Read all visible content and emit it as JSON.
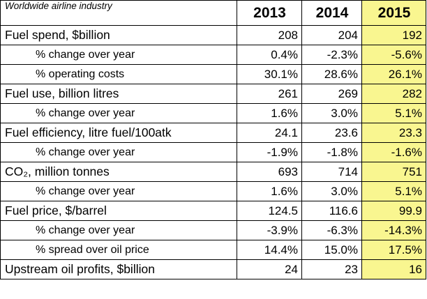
{
  "table": {
    "title": "Worldwide airline industry",
    "years": [
      "2013",
      "2014",
      "2015"
    ],
    "highlight_color": "#f9f690",
    "rows": [
      {
        "label": "Fuel spend, $billion",
        "values": [
          "208",
          "204",
          "192"
        ]
      },
      {
        "label": "% change over year",
        "values": [
          "0.4%",
          "-2.3%",
          "-5.6%"
        ]
      },
      {
        "label": "% operating costs",
        "values": [
          "30.1%",
          "28.6%",
          "26.1%"
        ]
      },
      {
        "label": "Fuel use, billion litres",
        "values": [
          "261",
          "269",
          "282"
        ]
      },
      {
        "label": "% change over year",
        "values": [
          "1.6%",
          "3.0%",
          "5.1%"
        ]
      },
      {
        "label": "Fuel efficiency, litre fuel/100atk",
        "values": [
          "24.1",
          "23.6",
          "23.3"
        ]
      },
      {
        "label": "% change over year",
        "values": [
          "-1.9%",
          "-1.8%",
          "-1.6%"
        ]
      },
      {
        "label": "CO₂, million tonnes",
        "values": [
          "693",
          "714",
          "751"
        ]
      },
      {
        "label": "% change over year",
        "values": [
          "1.6%",
          "3.0%",
          "5.1%"
        ]
      },
      {
        "label": "Fuel price, $/barrel",
        "values": [
          "124.5",
          "116.6",
          "99.9"
        ]
      },
      {
        "label": "% change over year",
        "values": [
          "-3.9%",
          "-6.3%",
          "-14.3%"
        ]
      },
      {
        "label": "% spread over oil price",
        "values": [
          "14.4%",
          "15.0%",
          "17.5%"
        ]
      },
      {
        "label": "Upstream oil profits, $billion",
        "values": [
          "24",
          "23",
          "16"
        ]
      }
    ]
  }
}
